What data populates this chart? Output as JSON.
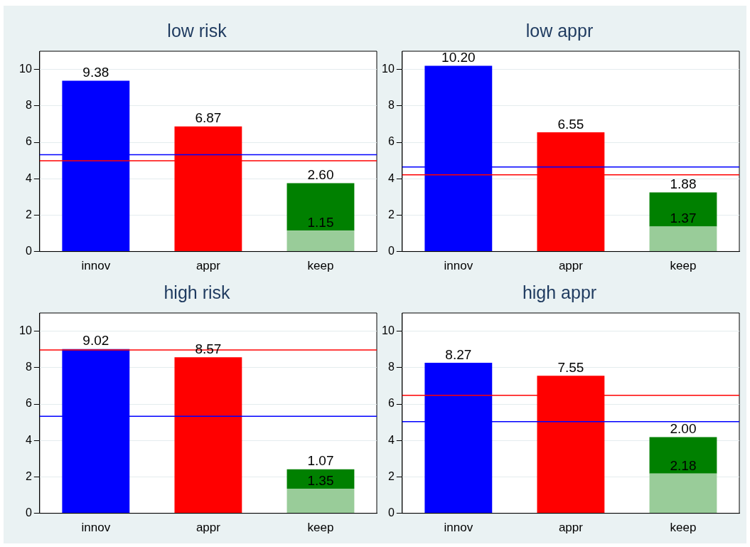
{
  "chart_data": [
    {
      "type": "bar",
      "title": "low risk",
      "categories": [
        "innov",
        "appr",
        "keep"
      ],
      "stacked": true,
      "grid": "y",
      "legend": false,
      "ylim": [
        0,
        11
      ],
      "yticks": [
        0,
        2,
        4,
        6,
        8,
        10
      ],
      "series": [
        {
          "colors": [
            "#0000ff",
            "#ff0000",
            "#99cc99"
          ],
          "values": [
            9.38,
            6.87,
            1.15
          ],
          "value_labels": [
            "9.38",
            "6.87",
            "1.15"
          ]
        },
        {
          "color": "#008000",
          "values": [
            null,
            null,
            2.6
          ],
          "value_labels": [
            null,
            null,
            "2.60"
          ]
        }
      ],
      "ref_lines": [
        {
          "axis": "y",
          "value": 5.32,
          "color": "#0000ff"
        },
        {
          "axis": "y",
          "value": 4.98,
          "color": "#ff0000"
        }
      ]
    },
    {
      "type": "bar",
      "title": "low appr",
      "categories": [
        "innov",
        "appr",
        "keep"
      ],
      "stacked": true,
      "grid": "y",
      "legend": false,
      "ylim": [
        0,
        11
      ],
      "yticks": [
        0,
        2,
        4,
        6,
        8,
        10
      ],
      "series": [
        {
          "colors": [
            "#0000ff",
            "#ff0000",
            "#99cc99"
          ],
          "values": [
            10.2,
            6.55,
            1.37
          ],
          "value_labels": [
            "10.20",
            "6.55",
            "1.37"
          ]
        },
        {
          "color": "#008000",
          "values": [
            null,
            null,
            1.88
          ],
          "value_labels": [
            null,
            null,
            "1.88"
          ]
        }
      ],
      "ref_lines": [
        {
          "axis": "y",
          "value": 4.64,
          "color": "#0000ff"
        },
        {
          "axis": "y",
          "value": 4.21,
          "color": "#ff0000"
        }
      ]
    },
    {
      "type": "bar",
      "title": "high risk",
      "categories": [
        "innov",
        "appr",
        "keep"
      ],
      "stacked": true,
      "grid": "y",
      "legend": false,
      "ylim": [
        0,
        11
      ],
      "yticks": [
        0,
        2,
        4,
        6,
        8,
        10
      ],
      "series": [
        {
          "colors": [
            "#0000ff",
            "#ff0000",
            "#99cc99"
          ],
          "values": [
            9.02,
            8.57,
            1.35
          ],
          "value_labels": [
            "9.02",
            "8.57",
            "1.35"
          ]
        },
        {
          "color": "#008000",
          "values": [
            null,
            null,
            1.07
          ],
          "value_labels": [
            null,
            null,
            "1.07"
          ]
        }
      ],
      "ref_lines": [
        {
          "axis": "y",
          "value": 5.33,
          "color": "#0000ff"
        },
        {
          "axis": "y",
          "value": 8.97,
          "color": "#ff0000"
        }
      ]
    },
    {
      "type": "bar",
      "title": "high appr",
      "categories": [
        "innov",
        "appr",
        "keep"
      ],
      "stacked": true,
      "grid": "y",
      "legend": false,
      "ylim": [
        0,
        11
      ],
      "yticks": [
        0,
        2,
        4,
        6,
        8,
        10
      ],
      "series": [
        {
          "colors": [
            "#0000ff",
            "#ff0000",
            "#99cc99"
          ],
          "values": [
            8.27,
            7.55,
            2.18
          ],
          "value_labels": [
            "8.27",
            "7.55",
            "2.18"
          ]
        },
        {
          "color": "#008000",
          "values": [
            null,
            null,
            2.0
          ],
          "value_labels": [
            null,
            null,
            "2.00"
          ]
        }
      ],
      "ref_lines": [
        {
          "axis": "y",
          "value": 5.03,
          "color": "#0000ff"
        },
        {
          "axis": "y",
          "value": 6.48,
          "color": "#ff0000"
        }
      ]
    }
  ]
}
